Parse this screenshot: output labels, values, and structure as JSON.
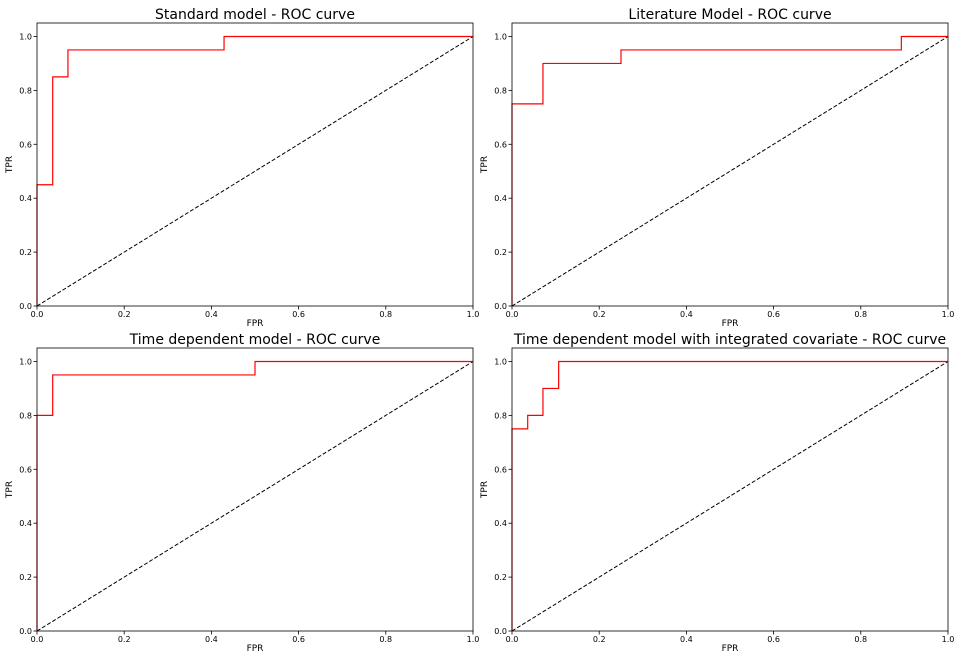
{
  "colors": {
    "roc": "#ff0000",
    "diagonal": "#000000",
    "axes": "#000000",
    "background": "#ffffff"
  },
  "chart_data": [
    {
      "type": "line",
      "title": "Standard model - ROC curve",
      "xlabel": "FPR",
      "ylabel": "TPR",
      "xlim": [
        0,
        1
      ],
      "ylim": [
        0,
        1.05
      ],
      "xticks": [
        "0.0",
        "0.2",
        "0.4",
        "0.6",
        "0.8",
        "1.0"
      ],
      "yticks": [
        "0.0",
        "0.2",
        "0.4",
        "0.6",
        "0.8",
        "1.0"
      ],
      "grid": false,
      "series": [
        {
          "x": [
            0,
            0,
            0.036,
            0.036,
            0.071,
            0.071,
            0.429,
            0.429,
            1.0
          ],
          "y": [
            0,
            0.45,
            0.45,
            0.85,
            0.85,
            0.95,
            0.95,
            1.0,
            1.0
          ]
        },
        {
          "x": [
            0,
            1
          ],
          "y": [
            0,
            1
          ]
        }
      ]
    },
    {
      "type": "line",
      "title": "Literature Model - ROC curve",
      "xlabel": "FPR",
      "ylabel": "TPR",
      "xlim": [
        0,
        1
      ],
      "ylim": [
        0,
        1.05
      ],
      "xticks": [
        "0.0",
        "0.2",
        "0.4",
        "0.6",
        "0.8",
        "1.0"
      ],
      "yticks": [
        "0.0",
        "0.2",
        "0.4",
        "0.6",
        "0.8",
        "1.0"
      ],
      "grid": false,
      "series": [
        {
          "x": [
            0,
            0,
            0.071,
            0.071,
            0.25,
            0.25,
            0.893,
            0.893,
            1.0
          ],
          "y": [
            0,
            0.75,
            0.75,
            0.9,
            0.9,
            0.95,
            0.95,
            1.0,
            1.0
          ]
        },
        {
          "x": [
            0,
            1
          ],
          "y": [
            0,
            1
          ]
        }
      ]
    },
    {
      "type": "line",
      "title": "Time dependent model - ROC curve",
      "xlabel": "FPR",
      "ylabel": "TPR",
      "xlim": [
        0,
        1
      ],
      "ylim": [
        0,
        1.05
      ],
      "xticks": [
        "0.0",
        "0.2",
        "0.4",
        "0.6",
        "0.8",
        "1.0"
      ],
      "yticks": [
        "0.0",
        "0.2",
        "0.4",
        "0.6",
        "0.8",
        "1.0"
      ],
      "grid": false,
      "series": [
        {
          "x": [
            0,
            0,
            0.036,
            0.036,
            0.5,
            0.5,
            1.0
          ],
          "y": [
            0,
            0.8,
            0.8,
            0.95,
            0.95,
            1.0,
            1.0
          ]
        },
        {
          "x": [
            0,
            1
          ],
          "y": [
            0,
            1
          ]
        }
      ]
    },
    {
      "type": "line",
      "title": "Time dependent model with integrated covariate - ROC curve",
      "xlabel": "FPR",
      "ylabel": "TPR",
      "xlim": [
        0,
        1
      ],
      "ylim": [
        0,
        1.05
      ],
      "xticks": [
        "0.0",
        "0.2",
        "0.4",
        "0.6",
        "0.8",
        "1.0"
      ],
      "yticks": [
        "0.0",
        "0.2",
        "0.4",
        "0.6",
        "0.8",
        "1.0"
      ],
      "grid": false,
      "series": [
        {
          "x": [
            0,
            0,
            0.036,
            0.036,
            0.071,
            0.071,
            0.107,
            0.107,
            1.0
          ],
          "y": [
            0,
            0.75,
            0.75,
            0.8,
            0.8,
            0.9,
            0.9,
            1.0,
            1.0
          ]
        },
        {
          "x": [
            0,
            1
          ],
          "y": [
            0,
            1
          ]
        }
      ]
    }
  ]
}
